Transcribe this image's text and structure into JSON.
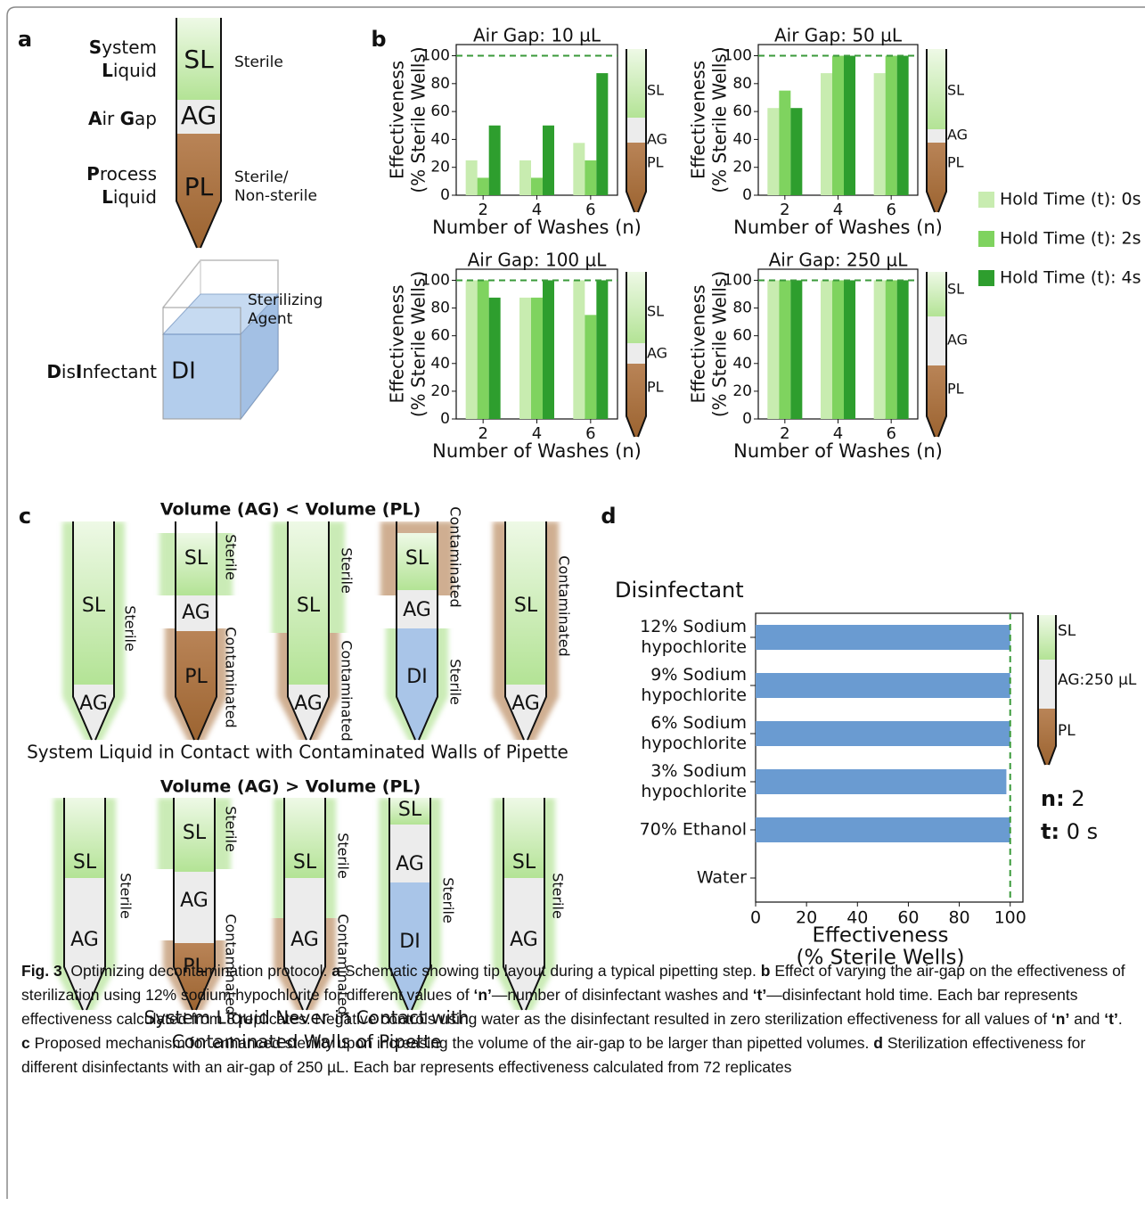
{
  "panel_labels": [
    "a",
    "b",
    "c",
    "d"
  ],
  "panel_a": {
    "tip_labels": [
      "SL",
      "AG",
      "PL"
    ],
    "system_liquid": [
      "System",
      "Liquid"
    ],
    "air_gap": [
      "Air",
      "Gap"
    ],
    "process_liquid": [
      "Process",
      "Liquid"
    ],
    "sl_note": "Sterile",
    "pl_note": [
      "Sterile/",
      "Non-sterile"
    ],
    "disinfectant": [
      "Dis",
      "Infectant"
    ],
    "di_label": "DI",
    "di_note": [
      "Sterilizing",
      "Agent"
    ]
  },
  "chart_data": [
    {
      "type": "bar",
      "title": "Air Gap: 10 µL",
      "y_label": [
        "Effectiveness",
        "(% Sterile Wells)"
      ],
      "x_label": "Number of Washes (n)",
      "categories": [
        "2",
        "4",
        "6"
      ],
      "series": [
        {
          "name": "Hold Time (t): 0s",
          "color": "#c8ecb0",
          "values": [
            25,
            25,
            37.5
          ]
        },
        {
          "name": "Hold Time (t): 2s",
          "color": "#7fd35f",
          "values": [
            12.5,
            12.5,
            25
          ]
        },
        {
          "name": "Hold Time (t): 4s",
          "color": "#2e9e2e",
          "values": [
            50,
            50,
            87.5
          ]
        }
      ],
      "ylim": [
        0,
        108
      ],
      "yticks": [
        0,
        20,
        40,
        60,
        80,
        100
      ],
      "reference_line": 100,
      "reference_color": "#3a9a3a",
      "tip_labels": [
        "SL",
        "AG",
        "PL"
      ]
    },
    {
      "type": "bar",
      "title": "Air Gap: 50 µL",
      "y_label": [
        "Effectiveness",
        "(% Sterile Wells)"
      ],
      "x_label": "Number of Washes (n)",
      "categories": [
        "2",
        "4",
        "6"
      ],
      "series": [
        {
          "color": "#c8ecb0",
          "values": [
            62.5,
            87.5,
            87.5
          ]
        },
        {
          "color": "#7fd35f",
          "values": [
            75,
            100,
            100
          ]
        },
        {
          "color": "#2e9e2e",
          "values": [
            62.5,
            100,
            100
          ]
        }
      ],
      "ylim": [
        0,
        108
      ],
      "yticks": [
        0,
        20,
        40,
        60,
        80,
        100
      ],
      "reference_line": 100,
      "reference_color": "#3a9a3a",
      "tip_labels": [
        "SL",
        "AG",
        "PL"
      ]
    },
    {
      "type": "bar",
      "title": "Air Gap: 100 µL",
      "y_label": [
        "Effectiveness",
        "(% Sterile Wells)"
      ],
      "x_label": "Number of Washes (n)",
      "categories": [
        "2",
        "4",
        "6"
      ],
      "series": [
        {
          "color": "#c8ecb0",
          "values": [
            100,
            87.5,
            100
          ]
        },
        {
          "color": "#7fd35f",
          "values": [
            100,
            87.5,
            75
          ]
        },
        {
          "color": "#2e9e2e",
          "values": [
            87.5,
            100,
            100
          ]
        }
      ],
      "ylim": [
        0,
        108
      ],
      "yticks": [
        0,
        20,
        40,
        60,
        80,
        100
      ],
      "reference_line": 100,
      "reference_color": "#3a9a3a",
      "tip_labels": [
        "SL",
        "AG",
        "PL"
      ]
    },
    {
      "type": "bar",
      "title": "Air Gap: 250 µL",
      "y_label": [
        "Effectiveness",
        "(% Sterile Wells)"
      ],
      "x_label": "Number of Washes (n)",
      "categories": [
        "2",
        "4",
        "6"
      ],
      "series": [
        {
          "color": "#c8ecb0",
          "values": [
            100,
            100,
            100
          ]
        },
        {
          "color": "#7fd35f",
          "values": [
            100,
            100,
            100
          ]
        },
        {
          "color": "#2e9e2e",
          "values": [
            100,
            100,
            100
          ]
        }
      ],
      "ylim": [
        0,
        108
      ],
      "yticks": [
        0,
        20,
        40,
        60,
        80,
        100
      ],
      "reference_line": 100,
      "reference_color": "#3a9a3a",
      "tip_labels": [
        "SL",
        "AG",
        "PL"
      ]
    },
    {
      "type": "barh",
      "y_label": "Disinfectant",
      "x_label": [
        "Effectiveness",
        "(% Sterile Wells)"
      ],
      "categories": [
        "12% Sodium hypochlorite",
        "9% Sodium hypochlorite",
        "6% Sodium hypochlorite",
        "3% Sodium hypochlorite",
        "70% Ethanol",
        "Water"
      ],
      "values": [
        100,
        100,
        100,
        98.5,
        100,
        0
      ],
      "color": "#6a9bd1",
      "xlim": [
        0,
        105
      ],
      "xticks": [
        0,
        20,
        40,
        60,
        80,
        100
      ],
      "reference_line": 100,
      "reference_color": "#3a9a3a",
      "tip_labels": [
        "SL",
        "AG:250 µL",
        "PL"
      ],
      "params": [
        "n: 2",
        "t: 0 s"
      ]
    }
  ],
  "panel_c": {
    "rows": [
      {
        "title": "Volume (AG) < Volume (PL)",
        "caption": [
          "System Liquid in Contact with Contaminated Walls of Pipette"
        ],
        "tips": [
          {
            "labels": [
              "SL",
              "AG"
            ],
            "side": [
              "Sterile"
            ]
          },
          {
            "labels": [
              "SL",
              "AG",
              "PL"
            ],
            "side": [
              "Sterile",
              "Contaminated"
            ]
          },
          {
            "labels": [
              "SL",
              "AG"
            ],
            "side": [
              "Sterile",
              "Contaminated"
            ]
          },
          {
            "labels": [
              "SL",
              "AG",
              "DI"
            ],
            "side": [
              "Contaminated",
              "Sterile"
            ]
          },
          {
            "labels": [
              "SL",
              "AG"
            ],
            "side": [
              "Contaminated"
            ]
          }
        ]
      },
      {
        "title": "Volume (AG) > Volume (PL)",
        "caption": [
          "System Liquid Never in Contact with",
          "Contaminated Walls of Pipette"
        ],
        "tips": [
          {
            "labels": [
              "SL",
              "AG"
            ],
            "side": [
              "Sterile"
            ]
          },
          {
            "labels": [
              "SL",
              "AG",
              "PL"
            ],
            "side": [
              "Sterile",
              "Contaminated"
            ]
          },
          {
            "labels": [
              "SL",
              "AG"
            ],
            "side": [
              "Sterile",
              "Contaminated"
            ]
          },
          {
            "labels": [
              "SL",
              "AG",
              "DI"
            ],
            "side": [
              "Sterile"
            ]
          },
          {
            "labels": [
              "SL",
              "AG"
            ],
            "side": [
              "Sterile"
            ]
          }
        ]
      }
    ]
  },
  "caption": [
    {
      "text": "Fig. 3",
      "bold": true
    },
    {
      "text": "  Optimizing decontamination protocol. ",
      "bold": false
    },
    {
      "text": "a",
      "bold": true
    },
    {
      "text": " Schematic showing tip layout during a typical pipetting step. ",
      "bold": false
    },
    {
      "text": "b",
      "bold": true
    },
    {
      "text": " Effect of varying the air-gap on the effectiveness of sterilization using 12% sodium hypochlorite for different values of ",
      "bold": false
    },
    {
      "text": "‘n’",
      "bold": true
    },
    {
      "text": "—number of disinfectant washes and ",
      "bold": false
    },
    {
      "text": "‘t’",
      "bold": true
    },
    {
      "text": "—disinfectant hold time. Each bar represents effectiveness calculated from 8 replicates. Negative controls using water as the disinfectant resulted in zero sterilization effectiveness for all values of ",
      "bold": false
    },
    {
      "text": "‘n’",
      "bold": true
    },
    {
      "text": " and ",
      "bold": false
    },
    {
      "text": "‘t’",
      "bold": true
    },
    {
      "text": ". ",
      "bold": false
    },
    {
      "text": "c",
      "bold": true
    },
    {
      "text": " Proposed mechanism for enhanced sterility upon increasing the volume of the air-gap to be larger than pipetted volumes. ",
      "bold": false
    },
    {
      "text": "d",
      "bold": true
    },
    {
      "text": " Sterilization effectiveness for different disinfectants with an air-gap of 250 µL. Each bar represents effectiveness calculated from 72 replicates",
      "bold": false
    }
  ]
}
